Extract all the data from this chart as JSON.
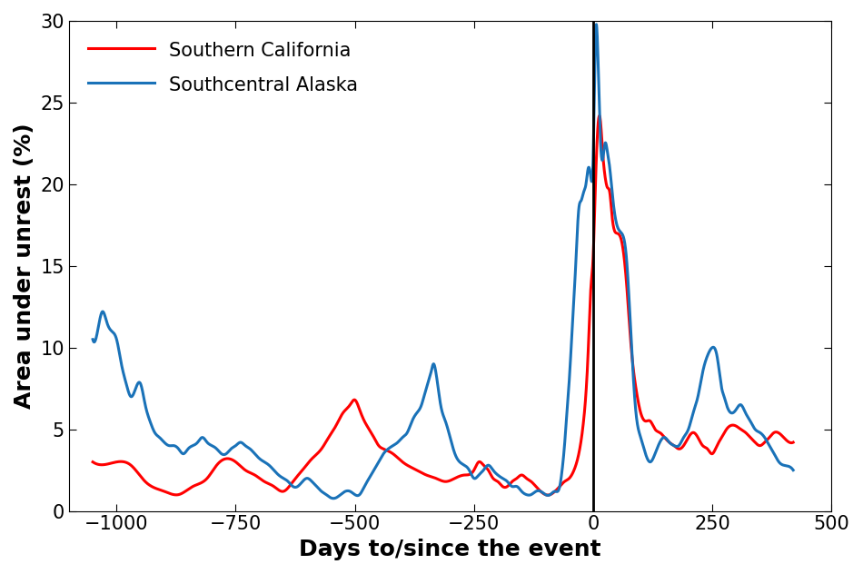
{
  "title": "",
  "xlabel": "Days to/since the event",
  "ylabel": "Area under unrest (%)",
  "xlim": [
    -1100,
    500
  ],
  "ylim": [
    0,
    30
  ],
  "xticks": [
    -1000,
    -750,
    -500,
    -250,
    0,
    250,
    500
  ],
  "yticks": [
    0,
    5,
    10,
    15,
    20,
    25,
    30
  ],
  "vline_x": 0,
  "legend": [
    {
      "label": "Southern California",
      "color": "#ff0000"
    },
    {
      "label": "Southcentral Alaska",
      "color": "#1a72b8"
    }
  ],
  "line_width": 2.2,
  "xlabel_fontsize": 18,
  "ylabel_fontsize": 18,
  "tick_fontsize": 15,
  "legend_fontsize": 15,
  "red_keypoints": [
    [
      -1050,
      3.0
    ],
    [
      -1000,
      3.0
    ],
    [
      -970,
      2.8
    ],
    [
      -940,
      1.8
    ],
    [
      -900,
      1.2
    ],
    [
      -870,
      1.0
    ],
    [
      -840,
      1.5
    ],
    [
      -810,
      2.0
    ],
    [
      -790,
      2.8
    ],
    [
      -770,
      3.2
    ],
    [
      -750,
      3.0
    ],
    [
      -730,
      2.5
    ],
    [
      -710,
      2.2
    ],
    [
      -690,
      1.8
    ],
    [
      -670,
      1.5
    ],
    [
      -650,
      1.2
    ],
    [
      -630,
      1.8
    ],
    [
      -610,
      2.5
    ],
    [
      -590,
      3.2
    ],
    [
      -570,
      3.8
    ],
    [
      -555,
      4.5
    ],
    [
      -540,
      5.2
    ],
    [
      -525,
      6.0
    ],
    [
      -510,
      6.5
    ],
    [
      -500,
      6.8
    ],
    [
      -490,
      6.2
    ],
    [
      -480,
      5.5
    ],
    [
      -470,
      5.0
    ],
    [
      -460,
      4.5
    ],
    [
      -450,
      4.0
    ],
    [
      -440,
      3.8
    ],
    [
      -420,
      3.5
    ],
    [
      -400,
      3.0
    ],
    [
      -390,
      2.8
    ],
    [
      -370,
      2.5
    ],
    [
      -350,
      2.2
    ],
    [
      -330,
      2.0
    ],
    [
      -310,
      1.8
    ],
    [
      -290,
      2.0
    ],
    [
      -270,
      2.2
    ],
    [
      -250,
      2.5
    ],
    [
      -240,
      3.0
    ],
    [
      -230,
      2.8
    ],
    [
      -220,
      2.5
    ],
    [
      -210,
      2.0
    ],
    [
      -200,
      1.8
    ],
    [
      -190,
      1.5
    ],
    [
      -180,
      1.5
    ],
    [
      -170,
      1.8
    ],
    [
      -160,
      2.0
    ],
    [
      -150,
      2.2
    ],
    [
      -140,
      2.0
    ],
    [
      -130,
      1.8
    ],
    [
      -120,
      1.5
    ],
    [
      -110,
      1.2
    ],
    [
      -100,
      1.0
    ],
    [
      -90,
      1.0
    ],
    [
      -80,
      1.2
    ],
    [
      -70,
      1.5
    ],
    [
      -60,
      1.8
    ],
    [
      -50,
      2.0
    ],
    [
      -40,
      2.5
    ],
    [
      -30,
      3.5
    ],
    [
      -20,
      5.5
    ],
    [
      -10,
      10.0
    ],
    [
      -5,
      13.5
    ],
    [
      0,
      15.5
    ],
    [
      5,
      20.0
    ],
    [
      10,
      23.5
    ],
    [
      15,
      24.0
    ],
    [
      20,
      22.0
    ],
    [
      25,
      20.5
    ],
    [
      30,
      19.8
    ],
    [
      35,
      19.5
    ],
    [
      40,
      18.0
    ],
    [
      50,
      17.0
    ],
    [
      60,
      16.5
    ],
    [
      70,
      14.0
    ],
    [
      80,
      10.0
    ],
    [
      90,
      7.5
    ],
    [
      100,
      6.0
    ],
    [
      110,
      5.5
    ],
    [
      120,
      5.5
    ],
    [
      130,
      5.0
    ],
    [
      140,
      4.8
    ],
    [
      150,
      4.5
    ],
    [
      160,
      4.2
    ],
    [
      170,
      4.0
    ],
    [
      180,
      3.8
    ],
    [
      190,
      4.0
    ],
    [
      200,
      4.5
    ],
    [
      210,
      4.8
    ],
    [
      220,
      4.5
    ],
    [
      230,
      4.0
    ],
    [
      240,
      3.8
    ],
    [
      250,
      3.5
    ],
    [
      260,
      4.0
    ],
    [
      270,
      4.5
    ],
    [
      280,
      5.0
    ],
    [
      300,
      5.2
    ],
    [
      310,
      5.0
    ],
    [
      320,
      4.8
    ],
    [
      330,
      4.5
    ],
    [
      340,
      4.2
    ],
    [
      350,
      4.0
    ],
    [
      360,
      4.2
    ],
    [
      370,
      4.5
    ],
    [
      380,
      4.8
    ],
    [
      400,
      4.5
    ],
    [
      420,
      4.2
    ]
  ],
  "blue_keypoints": [
    [
      -1050,
      10.5
    ],
    [
      -1040,
      11.0
    ],
    [
      -1030,
      12.2
    ],
    [
      -1020,
      11.5
    ],
    [
      -1010,
      11.0
    ],
    [
      -1000,
      10.5
    ],
    [
      -990,
      9.0
    ],
    [
      -980,
      7.8
    ],
    [
      -970,
      7.0
    ],
    [
      -960,
      7.5
    ],
    [
      -950,
      7.8
    ],
    [
      -940,
      6.5
    ],
    [
      -930,
      5.5
    ],
    [
      -920,
      4.8
    ],
    [
      -910,
      4.5
    ],
    [
      -900,
      4.2
    ],
    [
      -890,
      4.0
    ],
    [
      -880,
      4.0
    ],
    [
      -870,
      3.8
    ],
    [
      -860,
      3.5
    ],
    [
      -850,
      3.8
    ],
    [
      -840,
      4.0
    ],
    [
      -830,
      4.2
    ],
    [
      -820,
      4.5
    ],
    [
      -810,
      4.2
    ],
    [
      -800,
      4.0
    ],
    [
      -790,
      3.8
    ],
    [
      -780,
      3.5
    ],
    [
      -770,
      3.5
    ],
    [
      -760,
      3.8
    ],
    [
      -750,
      4.0
    ],
    [
      -740,
      4.2
    ],
    [
      -730,
      4.0
    ],
    [
      -720,
      3.8
    ],
    [
      -710,
      3.5
    ],
    [
      -700,
      3.2
    ],
    [
      -690,
      3.0
    ],
    [
      -680,
      2.8
    ],
    [
      -670,
      2.5
    ],
    [
      -660,
      2.2
    ],
    [
      -650,
      2.0
    ],
    [
      -640,
      1.8
    ],
    [
      -630,
      1.5
    ],
    [
      -620,
      1.5
    ],
    [
      -610,
      1.8
    ],
    [
      -600,
      2.0
    ],
    [
      -590,
      1.8
    ],
    [
      -580,
      1.5
    ],
    [
      -570,
      1.2
    ],
    [
      -560,
      1.0
    ],
    [
      -550,
      0.8
    ],
    [
      -540,
      0.8
    ],
    [
      -530,
      1.0
    ],
    [
      -520,
      1.2
    ],
    [
      -510,
      1.2
    ],
    [
      -500,
      1.0
    ],
    [
      -490,
      1.0
    ],
    [
      -480,
      1.5
    ],
    [
      -470,
      2.0
    ],
    [
      -460,
      2.5
    ],
    [
      -450,
      3.0
    ],
    [
      -440,
      3.5
    ],
    [
      -430,
      3.8
    ],
    [
      -420,
      4.0
    ],
    [
      -410,
      4.2
    ],
    [
      -400,
      4.5
    ],
    [
      -390,
      4.8
    ],
    [
      -380,
      5.5
    ],
    [
      -370,
      6.0
    ],
    [
      -360,
      6.5
    ],
    [
      -355,
      7.0
    ],
    [
      -350,
      7.5
    ],
    [
      -345,
      8.0
    ],
    [
      -340,
      8.5
    ],
    [
      -335,
      9.0
    ],
    [
      -330,
      8.5
    ],
    [
      -325,
      7.5
    ],
    [
      -320,
      6.5
    ],
    [
      -310,
      5.5
    ],
    [
      -300,
      4.5
    ],
    [
      -290,
      3.5
    ],
    [
      -280,
      3.0
    ],
    [
      -270,
      2.8
    ],
    [
      -260,
      2.5
    ],
    [
      -250,
      2.0
    ],
    [
      -240,
      2.2
    ],
    [
      -230,
      2.5
    ],
    [
      -220,
      2.8
    ],
    [
      -210,
      2.5
    ],
    [
      -200,
      2.2
    ],
    [
      -190,
      2.0
    ],
    [
      -180,
      1.8
    ],
    [
      -170,
      1.5
    ],
    [
      -160,
      1.5
    ],
    [
      -150,
      1.2
    ],
    [
      -140,
      1.0
    ],
    [
      -130,
      1.0
    ],
    [
      -120,
      1.2
    ],
    [
      -110,
      1.2
    ],
    [
      -100,
      1.0
    ],
    [
      -90,
      1.0
    ],
    [
      -80,
      1.2
    ],
    [
      -70,
      1.5
    ],
    [
      -65,
      2.5
    ],
    [
      -60,
      4.0
    ],
    [
      -55,
      6.0
    ],
    [
      -50,
      8.0
    ],
    [
      -45,
      10.5
    ],
    [
      -40,
      13.0
    ],
    [
      -35,
      16.0
    ],
    [
      -30,
      18.5
    ],
    [
      -25,
      19.0
    ],
    [
      -20,
      19.5
    ],
    [
      -15,
      20.0
    ],
    [
      -10,
      21.0
    ],
    [
      -5,
      20.5
    ],
    [
      0,
      21.5
    ],
    [
      5,
      29.0
    ],
    [
      10,
      28.0
    ],
    [
      15,
      23.0
    ],
    [
      20,
      21.5
    ],
    [
      25,
      22.5
    ],
    [
      30,
      22.0
    ],
    [
      35,
      21.0
    ],
    [
      40,
      19.5
    ],
    [
      50,
      17.5
    ],
    [
      60,
      17.0
    ],
    [
      70,
      15.5
    ],
    [
      80,
      10.5
    ],
    [
      90,
      6.0
    ],
    [
      100,
      4.5
    ],
    [
      110,
      3.5
    ],
    [
      120,
      3.0
    ],
    [
      130,
      3.5
    ],
    [
      140,
      4.2
    ],
    [
      150,
      4.5
    ],
    [
      160,
      4.2
    ],
    [
      170,
      4.0
    ],
    [
      180,
      4.0
    ],
    [
      190,
      4.5
    ],
    [
      200,
      5.0
    ],
    [
      210,
      6.0
    ],
    [
      220,
      7.0
    ],
    [
      230,
      8.5
    ],
    [
      240,
      9.5
    ],
    [
      250,
      10.0
    ],
    [
      260,
      9.5
    ],
    [
      265,
      8.5
    ],
    [
      270,
      7.5
    ],
    [
      275,
      7.0
    ],
    [
      280,
      6.5
    ],
    [
      290,
      6.0
    ],
    [
      300,
      6.2
    ],
    [
      310,
      6.5
    ],
    [
      320,
      6.0
    ],
    [
      330,
      5.5
    ],
    [
      340,
      5.0
    ],
    [
      350,
      4.8
    ],
    [
      360,
      4.5
    ],
    [
      370,
      4.0
    ],
    [
      380,
      3.5
    ],
    [
      390,
      3.0
    ],
    [
      400,
      2.8
    ],
    [
      420,
      2.5
    ]
  ]
}
